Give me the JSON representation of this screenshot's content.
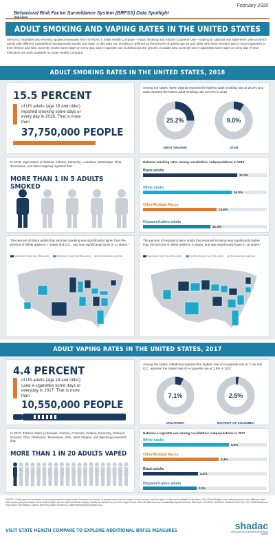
{
  "header": {
    "series": "Behavioral Risk Factor Surveillance System (BRFSS) Data Spotlight Series",
    "date": "February 2020",
    "title": "ADULT SMOKING AND VAPING RATES IN THE UNITED STATES",
    "intro": "SHADAC examines two recently updated measures from SHADAC's State Health Compare – Adult Smoking and Adult E-Cigarette Use – looking at national and state-level rates at which adults with different racial/ethnic backgrounds smoke and vape. In this data set, smoking is defined as the percent of adults age 18 and older who have smoked 100 or more cigarettes in their lifetime and who currently smoke some days or every day, and e-cigarette use is defined as the percent of adults who currently use e-cigarettes some days or every day. These indicators are both available on State Health Compare."
  },
  "smoking": {
    "band": "ADULT SMOKING RATES IN THE UNITED STATES, 2018",
    "big_pct": "15.5 PERCENT",
    "sub": "of US adults (age 18 and older) reported smoking some days or every day in 2018. That is more than",
    "people": "37,750,000 PEOPLE",
    "states_text": "Among the states, West Virginia reported the highest adult smoking rate at 25.2% and Utah reported the lowest adult smoking rate at 9.0% in 2018.",
    "donut_left": {
      "value": "25.2%",
      "label": "WEST VIRGINIA",
      "pct": 25.2
    },
    "donut_right": {
      "value": "9.0%",
      "label": "UTAH",
      "pct": 9.0
    },
    "one_in_five_text": "In 2018, eight states (Arkansas, Indiana, Kentucky, Louisiana, Mississippi, Ohio, Tennessee, and West Virginia) reported that",
    "one_in_five": "MORE THAN 1 IN 5 ADULTS SMOKED",
    "race_title": "National smoking rates among racial/ethnic subpopulations in 2018",
    "race": [
      {
        "label": "Black adults",
        "value": "17.4%",
        "pct": 17.4,
        "color": "#1b3a5b"
      },
      {
        "label": "White adults",
        "value": "16.3%",
        "pct": 16.3,
        "color": "#1fa8c9"
      },
      {
        "label": "Other/Multiple Races",
        "value": "13.6%",
        "pct": 13.6,
        "color": "#e07a2b"
      },
      {
        "label": "Hispanic/Latino adults",
        "value": "12.4%",
        "pct": 12.4,
        "color": "#1f7fa3"
      }
    ],
    "map_left_title": "The percent of Black adults that reported smoking was significantly higher than the percent of White adults in 7 states and D.C., and was significantly lower in 11 states.*",
    "map_right_title": "The percent of Hispanic/Latino adults that reported smoking was significantly higher than the percent of White adults in 6 states, and was significantly lower in 15 states.*",
    "legend": [
      "Significantly higher than White adults",
      "Significantly lower than White adults",
      "Not statistically significant"
    ]
  },
  "vaping": {
    "band": "ADULT VAPING RATES IN THE UNITED STATES, 2017",
    "big_pct": "4.4 PERCENT",
    "sub": "of US adults (age 18 and older) used e-cigarettes some days or everyday in 2017. That is more than",
    "people": "10,550,000 PEOPLE",
    "states_text": "Among the states, Oklahoma reported the highest rate of e-cigarette use at 7.1% and D.C. reported the lowest rate of e-cigarette use at 2.5% in 2017.",
    "donut_left": {
      "value": "7.1%",
      "label": "OKLAHOMA",
      "pct": 7.1
    },
    "donut_right": {
      "value": "2.5%",
      "label": "DISTRICT OF COLUMBIA",
      "pct": 2.5
    },
    "one_in_twenty_text": "In 2017, thirteen states (Arkansas, Arizona, Colorado, Indiana, Kentucky, Missouri, Nevada, Ohio, Oklahoma, Tennessee, Utah, West Virginia, and Wyoming) reported that",
    "one_in_twenty": "MORE THAN 1 IN 20 ADULTS VAPED",
    "race_title": "National e-cigarette use among racial/ethnic subpopulations in 2017",
    "race": [
      {
        "label": "White adults",
        "value": "5.0%",
        "pct": 5.0,
        "color": "#1fa8c9"
      },
      {
        "label": "Other/Multiple Races",
        "value": "4.4%",
        "pct": 4.4,
        "color": "#e07a2b"
      },
      {
        "label": "Black adults",
        "value": "3.2%",
        "pct": 3.2,
        "color": "#1b3a5b"
      },
      {
        "label": "Hispanic/Latino adults",
        "value": "3.1%",
        "pct": 3.1,
        "color": "#1f7fa3"
      }
    ]
  },
  "footer": {
    "notes": "NOTES: * Data were not available or were suppressed for some states because the number of sample cases was too small, so this number could be higher if data were available in all states. The *Other/Multiple race* category pools many different races with smaller groups because of the small sample size for each individual category. Adults are defined as persons of age 18 and older. All differences are statistically significant at the 95% level. SOURCE: SHADAC analysis of the 2017 and 2018 Behavioral Risk Factor Surveillance System (BRFSS) public use files on statehealthcompare.shadac.org",
    "cta": "VISIT STATE HEALTH COMPARE TO EXPLORE ADDITIONAL BRFSS MEASURES",
    "logo": "shadac",
    "logo_sub": "STATE HEALTH ACCESS DATA ASSISTANCE CENTER"
  },
  "colors": {
    "navy": "#1b3a5b",
    "teal": "#1f7fa3",
    "cyan": "#1fa8c9",
    "orange": "#e07a2b",
    "grey": "#c9cfd4"
  }
}
